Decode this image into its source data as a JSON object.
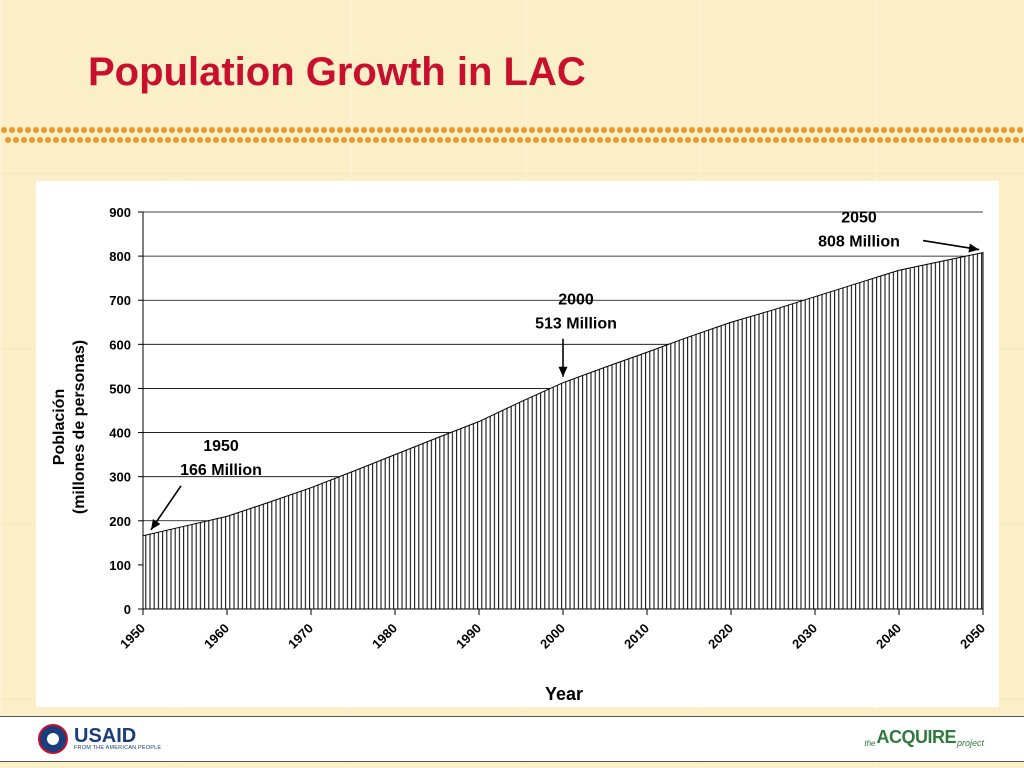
{
  "slide": {
    "title": "Population Growth in LAC"
  },
  "chart_data": {
    "type": "area",
    "x": [
      1950,
      1955,
      1960,
      1965,
      1970,
      1975,
      1980,
      1985,
      1990,
      1995,
      2000,
      2005,
      2010,
      2015,
      2020,
      2025,
      2030,
      2035,
      2040,
      2045,
      2050
    ],
    "series": [
      {
        "values": [
          166,
          188,
          210,
          242,
          275,
          312,
          350,
          388,
          425,
          470,
          513,
          548,
          582,
          617,
          650,
          678,
          708,
          738,
          768,
          788,
          808
        ]
      }
    ],
    "xticks": [
      "1950",
      "1960",
      "1970",
      "1980",
      "1990",
      "2000",
      "2010",
      "2020",
      "2030",
      "2040",
      "2050"
    ],
    "yticks": [
      "0",
      "100",
      "200",
      "300",
      "400",
      "500",
      "600",
      "700",
      "800",
      "900"
    ],
    "xlim": [
      1950,
      2050
    ],
    "ylim": [
      0,
      900
    ],
    "xlabel": "Year",
    "ylabel_lines": [
      "Población",
      "(millones de personas)"
    ],
    "grid": "horizontal",
    "annotations": [
      {
        "year": "1950",
        "label": "166 Million",
        "x": 1950,
        "y": 166
      },
      {
        "year": "2000",
        "label": "513 Million",
        "x": 2000,
        "y": 513
      },
      {
        "year": "2050",
        "label": "808 Million",
        "x": 2050,
        "y": 808
      }
    ]
  },
  "footer": {
    "usaid_logo": "USAID",
    "usaid_tagline": "FROM THE AMERICAN PEOPLE",
    "acquire_the": "the",
    "acquire_logo": "ACQUIRE",
    "acquire_project": "project"
  },
  "colors": {
    "title": "#c8102e",
    "dots": "#e89a2c",
    "fill_hatch": "#000000"
  }
}
